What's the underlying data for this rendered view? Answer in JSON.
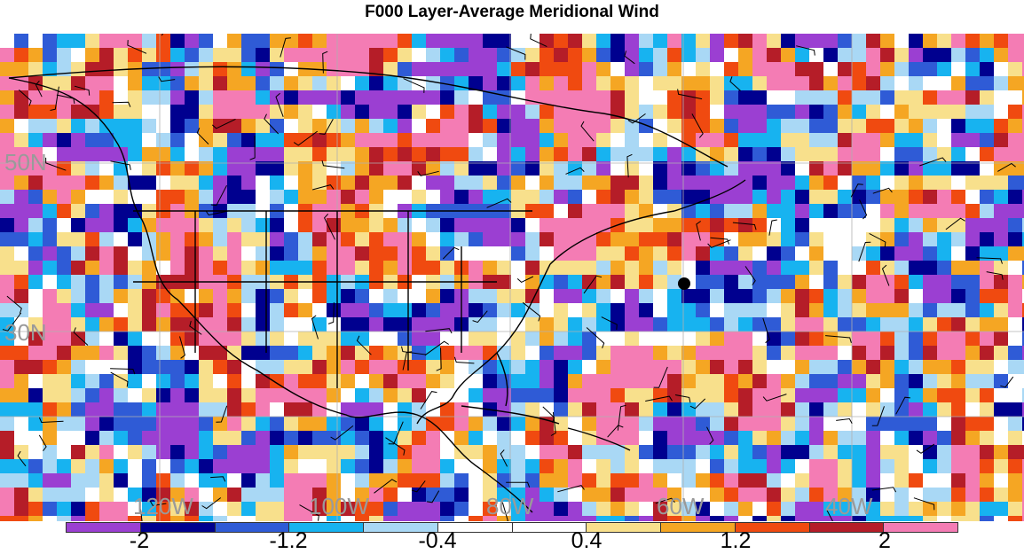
{
  "title": "F000 Layer-Average Meridional Wind",
  "lat_labels": [
    "50N",
    "30N"
  ],
  "lon_labels": [
    "120W",
    "100W",
    "80W",
    "60W",
    "40W"
  ],
  "colorbar": {
    "colors": [
      "#9b3fd2",
      "#00008f",
      "#2f5bd6",
      "#17b3f0",
      "#a9d8f5",
      "#ffffff",
      "#ffffff",
      "#f8e08c",
      "#f5a623",
      "#f04a10",
      "#b51d28",
      "#f47cb4"
    ],
    "tick_labels": [
      "-2",
      "-1.2",
      "-0.4",
      "0.4",
      "1.2",
      "2"
    ]
  },
  "map_palette": [
    "#9b3fd2",
    "#00008f",
    "#2f5bd6",
    "#17b3f0",
    "#a9d8f5",
    "#ffffff",
    "#f8e08c",
    "#f5a623",
    "#f04a10",
    "#b51d28",
    "#f47cb4"
  ],
  "marker_color": "#000000"
}
